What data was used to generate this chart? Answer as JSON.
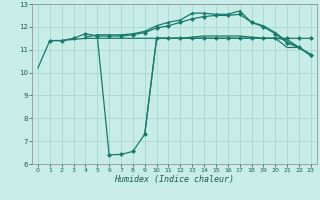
{
  "xlabel": "Humidex (Indice chaleur)",
  "xlim": [
    -0.5,
    23.5
  ],
  "ylim": [
    6,
    13
  ],
  "xticks": [
    0,
    1,
    2,
    3,
    4,
    5,
    6,
    7,
    8,
    9,
    10,
    11,
    12,
    13,
    14,
    15,
    16,
    17,
    18,
    19,
    20,
    21,
    22,
    23
  ],
  "yticks": [
    6,
    7,
    8,
    9,
    10,
    11,
    12,
    13
  ],
  "bg_color": "#c8ede8",
  "grid_color": "#a8d8d0",
  "line_color": "#1a7a6a",
  "lines": [
    {
      "x": [
        0,
        1,
        2,
        3,
        4,
        5,
        6,
        7,
        8,
        9,
        10,
        11,
        12,
        13,
        14,
        15,
        16,
        17,
        18,
        19,
        20,
        21,
        22,
        23
      ],
      "y": [
        10.2,
        11.4,
        11.4,
        11.45,
        11.5,
        11.5,
        11.5,
        11.5,
        11.5,
        11.5,
        11.5,
        11.5,
        11.5,
        11.5,
        11.5,
        11.5,
        11.5,
        11.5,
        11.5,
        11.5,
        11.5,
        11.1,
        11.1,
        10.8
      ],
      "marker": null
    },
    {
      "x": [
        1,
        2,
        3,
        4,
        5,
        6,
        7,
        8,
        9,
        10,
        11,
        12,
        13,
        14,
        15,
        16,
        17,
        18,
        19,
        20,
        21,
        22,
        23
      ],
      "y": [
        11.4,
        11.4,
        11.5,
        11.7,
        11.6,
        11.6,
        11.6,
        11.65,
        11.75,
        11.95,
        12.05,
        12.2,
        12.35,
        12.45,
        12.5,
        12.5,
        12.55,
        12.2,
        12.0,
        11.7,
        11.3,
        11.1,
        10.75
      ],
      "marker": "D"
    },
    {
      "x": [
        4,
        5,
        6,
        7,
        8,
        9,
        10,
        11,
        12,
        13,
        14,
        15,
        16,
        17,
        18,
        19,
        20,
        21,
        22,
        23
      ],
      "y": [
        11.55,
        11.65,
        11.65,
        11.65,
        11.7,
        11.8,
        12.05,
        12.2,
        12.3,
        12.6,
        12.6,
        12.55,
        12.55,
        12.7,
        12.2,
        12.05,
        11.75,
        11.35,
        11.1,
        10.75
      ],
      "marker": "^"
    },
    {
      "x": [
        5,
        6,
        7,
        8,
        9,
        10,
        11,
        12,
        13,
        14,
        15,
        16,
        17,
        18,
        19,
        20,
        21,
        22,
        23
      ],
      "y": [
        11.6,
        6.4,
        6.42,
        6.55,
        7.3,
        11.5,
        11.5,
        11.5,
        11.5,
        11.5,
        11.5,
        11.5,
        11.5,
        11.5,
        11.5,
        11.5,
        11.5,
        11.5,
        11.5
      ],
      "marker": "D"
    },
    {
      "x": [
        9,
        10,
        11,
        12,
        13,
        14,
        15,
        16,
        17,
        18,
        19,
        20,
        21,
        22,
        23
      ],
      "y": [
        7.3,
        11.5,
        11.5,
        11.5,
        11.55,
        11.6,
        11.6,
        11.6,
        11.6,
        11.55,
        11.5,
        11.5,
        11.45,
        11.1,
        10.75
      ],
      "marker": null
    }
  ]
}
